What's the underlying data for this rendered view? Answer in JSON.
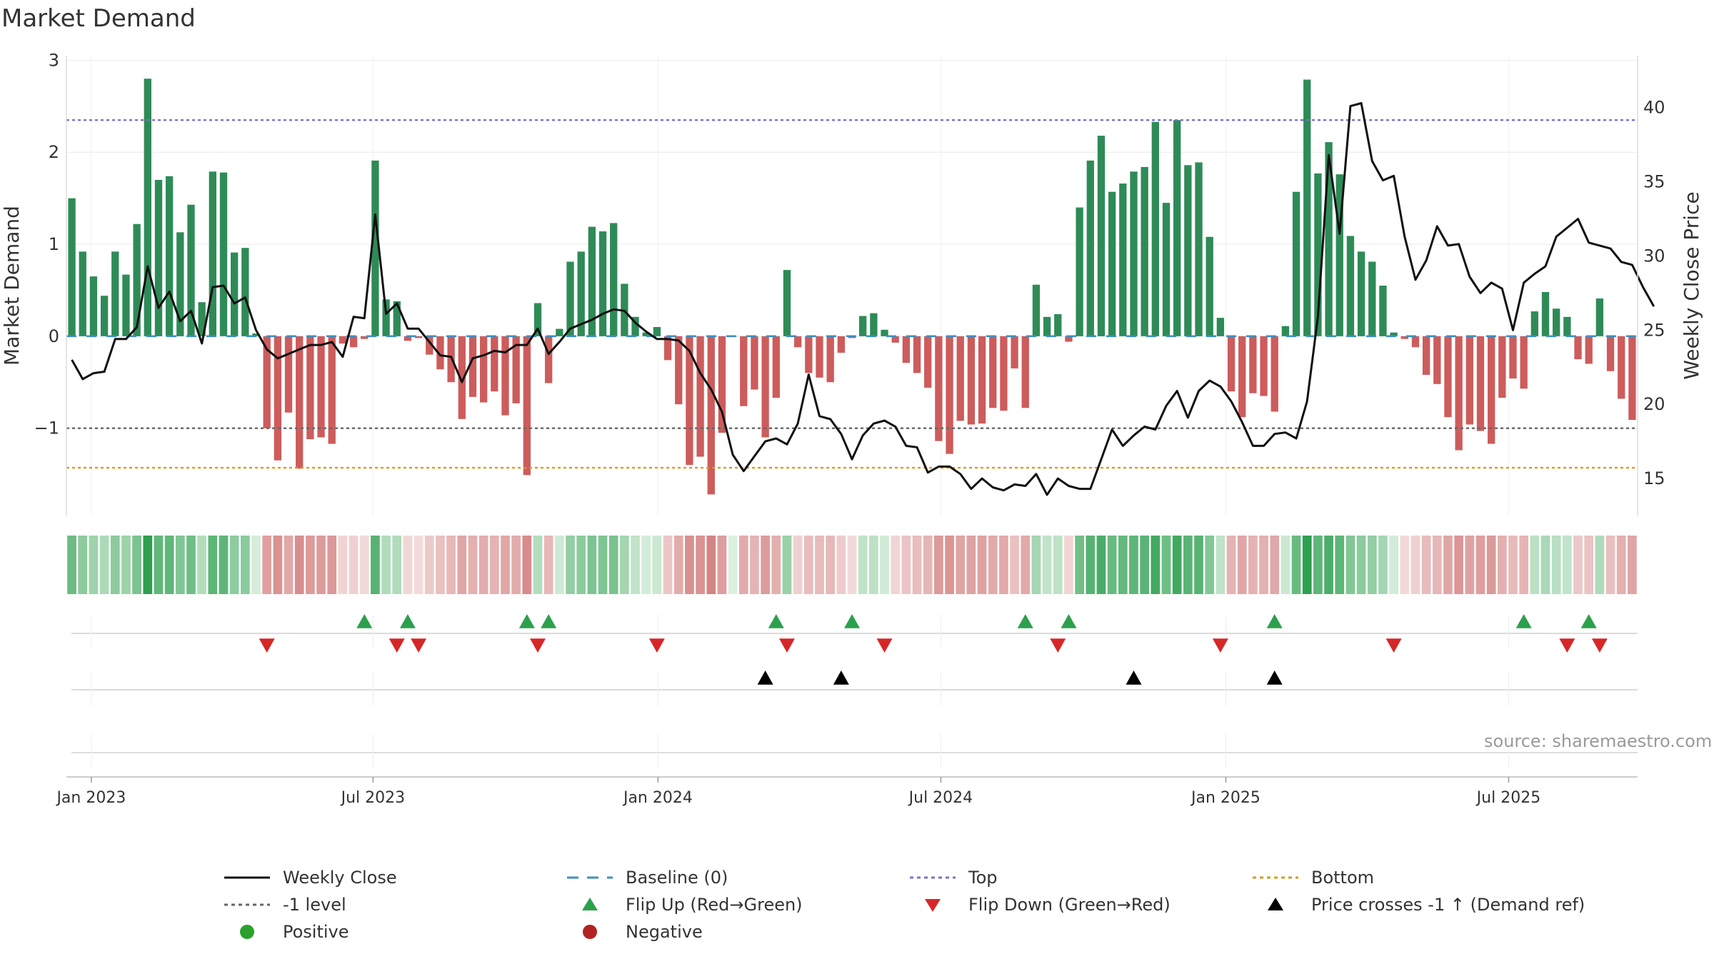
{
  "chart_data": {
    "type": "bar",
    "title": "Market Demand",
    "ylabel": "Market Demand",
    "y2label": "Weekly Close Price",
    "ylim": [
      -1.95,
      3.05
    ],
    "y2lim": [
      12.5,
      43.5
    ],
    "yticks": [
      3,
      2,
      1,
      0,
      -1
    ],
    "ytick_labels": [
      "3",
      "2",
      "1",
      "0",
      "−1"
    ],
    "y2ticks": [
      40,
      35,
      30,
      25,
      20,
      15
    ],
    "y2tick_labels": [
      "40",
      "35",
      "30",
      "25",
      "20",
      "15"
    ],
    "xticks": [
      2.3,
      28.3,
      54.6,
      80.7,
      107.0,
      133.1
    ],
    "xtick_labels": [
      "Jan 2023",
      "Jul 2023",
      "Jan 2024",
      "Jul 2024",
      "Jan 2025",
      "Jul 2025"
    ],
    "levels": {
      "top": 2.35,
      "minus_one": -1.0,
      "bottom": -1.43,
      "baseline": 0
    },
    "colors": {
      "positive": "#2e8b57",
      "negative": "#cd5c5c",
      "close_line": "#111111",
      "top_line": "#7b72c9",
      "bottom_line": "#d99a1e",
      "minus_one_line": "#666666",
      "baseline_line": "#3b8fc4",
      "flip_up": "#2ca04c",
      "flip_down": "#d62728",
      "cross": "#000000",
      "negative_dot": "#b22222",
      "positive_dot": "#2ca02c",
      "grid": "#ececec"
    },
    "demand": [
      1.5,
      0.92,
      0.65,
      0.44,
      0.92,
      0.67,
      1.22,
      2.8,
      1.7,
      1.74,
      1.13,
      1.43,
      0.37,
      1.79,
      1.78,
      0.91,
      0.96,
      0.03,
      -1.0,
      -1.35,
      -0.83,
      -1.44,
      -1.12,
      -1.1,
      -1.17,
      -0.08,
      -0.12,
      -0.03,
      1.91,
      0.4,
      0.38,
      -0.05,
      -0.02,
      -0.2,
      -0.36,
      -0.5,
      -0.9,
      -0.66,
      -0.72,
      -0.6,
      -0.86,
      -0.73,
      -1.51,
      0.36,
      -0.51,
      0.08,
      0.81,
      0.92,
      1.19,
      1.14,
      1.23,
      0.57,
      0.21,
      0.04,
      0.1,
      -0.26,
      -0.74,
      -1.4,
      -1.31,
      -1.72,
      -1.05,
      0.0,
      -0.76,
      -0.58,
      -1.1,
      -0.67,
      0.72,
      -0.12,
      -0.4,
      -0.45,
      -0.5,
      -0.18,
      -0.02,
      0.22,
      0.25,
      0.07,
      -0.07,
      -0.29,
      -0.4,
      -0.56,
      -1.14,
      -1.28,
      -0.92,
      -0.96,
      -0.95,
      -0.78,
      -0.81,
      -0.35,
      -0.78,
      0.56,
      0.21,
      0.24,
      -0.06,
      1.4,
      1.91,
      2.18,
      1.57,
      1.66,
      1.79,
      1.84,
      2.33,
      1.45,
      2.35,
      1.86,
      1.89,
      1.08,
      0.2,
      -0.6,
      -0.88,
      -0.62,
      -0.65,
      -0.82,
      0.11,
      1.57,
      2.79,
      1.77,
      2.11,
      1.76,
      1.09,
      0.92,
      0.81,
      0.55,
      0.04,
      -0.03,
      -0.12,
      -0.42,
      -0.52,
      -0.88,
      -1.24,
      -0.96,
      -1.03,
      -1.17,
      -0.67,
      -0.46,
      -0.57,
      0.27,
      0.48,
      0.3,
      0.21,
      -0.25,
      -0.3,
      0.41,
      -0.38,
      -0.68,
      -0.91
    ],
    "close": [
      23.0,
      21.7,
      22.1,
      22.2,
      24.4,
      24.4,
      25.2,
      29.3,
      26.5,
      27.6,
      25.6,
      26.3,
      24.1,
      27.9,
      28.0,
      26.8,
      27.2,
      25.0,
      23.7,
      23.1,
      23.4,
      23.7,
      24.0,
      24.0,
      24.2,
      23.2,
      25.9,
      25.8,
      32.8,
      26.1,
      26.8,
      25.1,
      25.1,
      24.2,
      23.3,
      23.2,
      21.5,
      23.1,
      23.3,
      23.6,
      23.5,
      24.0,
      24.0,
      25.1,
      23.4,
      24.2,
      25.1,
      25.4,
      25.7,
      26.1,
      26.4,
      26.3,
      25.5,
      24.9,
      24.4,
      24.4,
      24.3,
      23.6,
      22.1,
      21.0,
      19.5,
      16.6,
      15.5,
      16.5,
      17.5,
      17.7,
      17.3,
      18.7,
      22.0,
      19.2,
      19.0,
      18.0,
      16.3,
      17.9,
      18.7,
      18.9,
      18.5,
      17.2,
      17.1,
      15.4,
      15.8,
      15.8,
      15.3,
      14.3,
      15.0,
      14.4,
      14.2,
      14.6,
      14.5,
      15.3,
      13.9,
      15.0,
      14.5,
      14.3,
      14.3,
      16.3,
      18.3,
      17.2,
      17.9,
      18.5,
      18.3,
      19.9,
      20.9,
      19.1,
      20.9,
      21.6,
      21.2,
      20.2,
      18.8,
      17.2,
      17.2,
      18.0,
      18.1,
      17.7,
      20.2,
      25.9,
      36.8,
      31.5,
      40.1,
      40.3,
      36.4,
      35.1,
      35.4,
      31.3,
      28.4,
      29.7,
      32.0,
      30.7,
      30.8,
      28.6,
      27.5,
      28.2,
      27.8,
      25.0,
      28.2,
      28.8,
      29.3,
      31.3,
      31.9,
      32.5,
      30.9,
      30.7,
      30.5,
      29.6,
      29.4,
      27.9,
      26.6
    ]
  },
  "signals": {
    "flip_up": [
      27,
      31,
      42,
      44,
      65,
      72,
      88,
      92,
      111,
      134,
      140
    ],
    "flip_down": [
      18,
      30,
      32,
      43,
      54,
      66,
      75,
      91,
      106,
      122,
      138,
      141
    ],
    "price_cross": [
      64,
      71,
      98,
      111
    ]
  },
  "legend": {
    "weekly_close": "Weekly Close",
    "baseline": "Baseline (0)",
    "top": "Top",
    "bottom": "Bottom",
    "minus_one": "-1 level",
    "flip_up": "Flip Up (Red→Green)",
    "flip_down": "Flip Down (Green→Red)",
    "price_cross": "Price crosses -1 ↑ (Demand ref)",
    "positive": "Positive",
    "negative": "Negative"
  },
  "source": "source: sharemaestro.com"
}
